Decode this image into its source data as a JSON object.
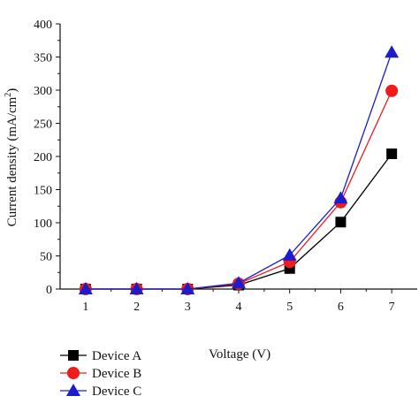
{
  "chart_data": {
    "type": "line",
    "xlabel": "Voltage (V)",
    "ylabel": {
      "main": "Current density (mA/cm",
      "superscript": "2",
      "close": ")"
    },
    "x": [
      1,
      2,
      3,
      4,
      5,
      6,
      7
    ],
    "xticks": [
      "1",
      "2",
      "3",
      "4",
      "5",
      "6",
      "7"
    ],
    "xlim": [
      0.5,
      7.5
    ],
    "ylim": [
      0,
      400
    ],
    "yticks": [
      "0",
      "50",
      "100",
      "150",
      "200",
      "250",
      "300",
      "350",
      "400"
    ],
    "legend_position": "bottom-left",
    "series": [
      {
        "name": "Device A",
        "values": [
          0,
          0,
          0,
          6,
          31,
          101,
          204
        ],
        "color": "#000000",
        "marker": "square"
      },
      {
        "name": "Device B",
        "values": [
          0,
          0,
          0,
          8,
          41,
          131,
          299
        ],
        "color": "#ee1c1c",
        "marker": "circle"
      },
      {
        "name": "Device C",
        "values": [
          0,
          0,
          0,
          9,
          51,
          137,
          357
        ],
        "color": "#1c1ccc",
        "marker": "triangle"
      }
    ]
  }
}
